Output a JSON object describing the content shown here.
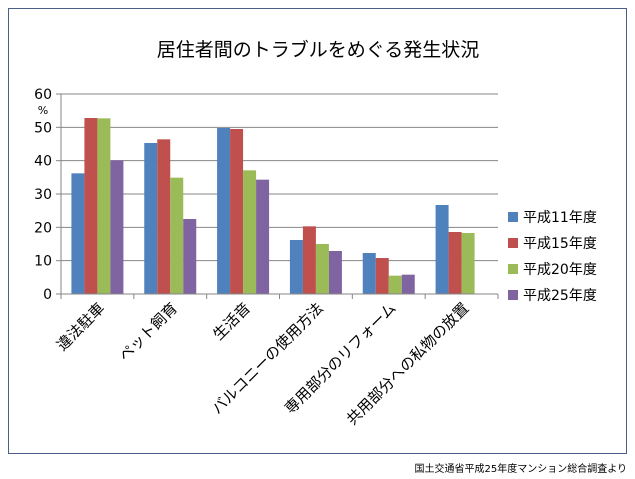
{
  "chart_data": {
    "type": "bar",
    "title": "居住者間のトラブルをめぐる発生状況",
    "ylabel": "%",
    "ylim": [
      0,
      60
    ],
    "yticks": [
      0,
      10,
      20,
      30,
      40,
      50,
      60
    ],
    "grid": true,
    "legend": "right",
    "categories": [
      "違法駐車",
      "ペット飼育",
      "生活音",
      "バルコニーの使用方法",
      "専用部分のリフォーム",
      "共用部分への私物の放置"
    ],
    "series": [
      {
        "name": "平成11年度",
        "color": "#4f81bd",
        "values": [
          36.2,
          45.3,
          49.8,
          16.2,
          12.3,
          26.7
        ]
      },
      {
        "name": "平成15年度",
        "color": "#c0504d",
        "values": [
          52.8,
          46.4,
          49.5,
          20.3,
          10.8,
          18.6
        ]
      },
      {
        "name": "平成20年度",
        "color": "#9bbb59",
        "values": [
          52.7,
          34.9,
          37.1,
          15.0,
          5.5,
          18.3
        ]
      },
      {
        "name": "平成25年度",
        "color": "#8064a2",
        "values": [
          40.1,
          22.5,
          34.3,
          12.9,
          5.8,
          null
        ]
      }
    ]
  },
  "source_note": "国土交通省平成25年度マンション総合調査より"
}
